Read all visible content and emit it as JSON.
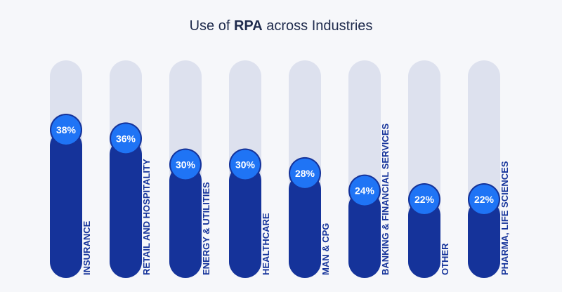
{
  "title": {
    "prefix": "Use of ",
    "bold": "RPA",
    "suffix": " across Industries"
  },
  "colors": {
    "track": "#dde1ee",
    "bar": "#15339a",
    "bubble": "#1f74f5",
    "bubble_ring": "#15339a",
    "label": "#15339a",
    "value_text": "#ffffff"
  },
  "chart_data": {
    "type": "bar",
    "title": "Use of RPA across Industries",
    "categories": [
      "INSURANCE",
      "RETAIL AND HOSPITALITY",
      "ENERGY & UTILITIES",
      "HEALTHCARE",
      "MAN & CPG",
      "BANKING & FINANCIAL SERVICES",
      "OTHER",
      "PHARMA, LIFE SCIENCES"
    ],
    "values": [
      38,
      36,
      30,
      30,
      28,
      24,
      22,
      22
    ],
    "value_labels": [
      "38%",
      "36%",
      "30%",
      "30%",
      "28%",
      "24%",
      "22%",
      "22%"
    ],
    "xlabel": "",
    "ylabel": ""
  }
}
